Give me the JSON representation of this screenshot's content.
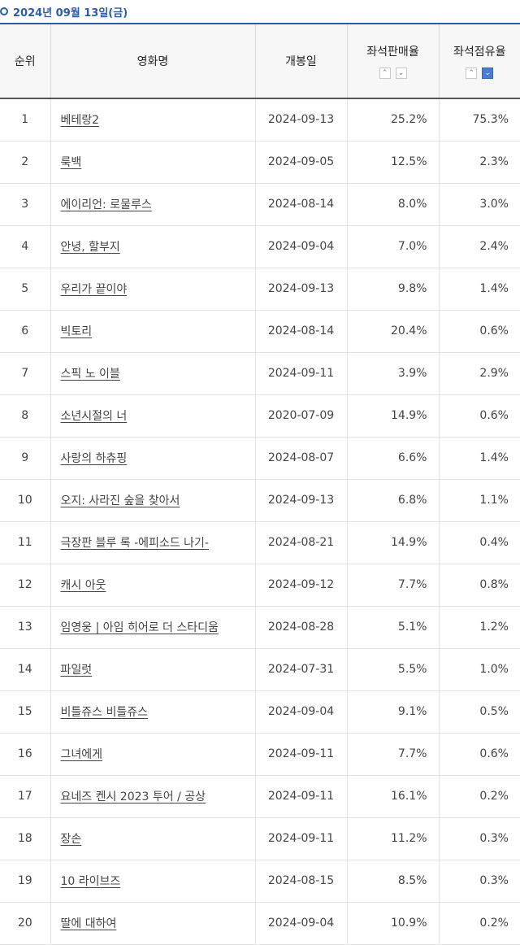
{
  "header": {
    "date_label": "2024년 09월 13일(금)"
  },
  "columns": {
    "rank": "순위",
    "title": "영화명",
    "release": "개봉일",
    "seat_sales": "좌석판매율",
    "seat_share": "좌석점유율"
  },
  "sort_icons": {
    "up": "chevron-up-icon",
    "down": "chevron-down-icon"
  },
  "rows": [
    {
      "rank": "1",
      "title": "베테랑2",
      "release": "2024-09-13",
      "sales": "25.2%",
      "share": "75.3%"
    },
    {
      "rank": "2",
      "title": "룩백",
      "release": "2024-09-05",
      "sales": "12.5%",
      "share": "2.3%"
    },
    {
      "rank": "3",
      "title": "에이리언: 로물루스",
      "release": "2024-08-14",
      "sales": "8.0%",
      "share": "3.0%"
    },
    {
      "rank": "4",
      "title": "안녕, 할부지",
      "release": "2024-09-04",
      "sales": "7.0%",
      "share": "2.4%"
    },
    {
      "rank": "5",
      "title": "우리가 끝이야",
      "release": "2024-09-13",
      "sales": "9.8%",
      "share": "1.4%"
    },
    {
      "rank": "6",
      "title": "빅토리",
      "release": "2024-08-14",
      "sales": "20.4%",
      "share": "0.6%"
    },
    {
      "rank": "7",
      "title": "스픽 노 이블",
      "release": "2024-09-11",
      "sales": "3.9%",
      "share": "2.9%"
    },
    {
      "rank": "8",
      "title": "소년시절의 너",
      "release": "2020-07-09",
      "sales": "14.9%",
      "share": "0.6%"
    },
    {
      "rank": "9",
      "title": "사랑의 하츄핑",
      "release": "2024-08-07",
      "sales": "6.6%",
      "share": "1.4%"
    },
    {
      "rank": "10",
      "title": "오지: 사라진 숲을 찾아서",
      "release": "2024-09-13",
      "sales": "6.8%",
      "share": "1.1%"
    },
    {
      "rank": "11",
      "title": "극장판 블루 록 -에피소드 나기-",
      "release": "2024-08-21",
      "sales": "14.9%",
      "share": "0.4%"
    },
    {
      "rank": "12",
      "title": "캐시 아웃",
      "release": "2024-09-12",
      "sales": "7.7%",
      "share": "0.8%"
    },
    {
      "rank": "13",
      "title": "임영웅 | 아임 히어로 더 스타디움",
      "release": "2024-08-28",
      "sales": "5.1%",
      "share": "1.2%"
    },
    {
      "rank": "14",
      "title": "파일럿",
      "release": "2024-07-31",
      "sales": "5.5%",
      "share": "1.0%"
    },
    {
      "rank": "15",
      "title": "비틀쥬스 비틀쥬스",
      "release": "2024-09-04",
      "sales": "9.1%",
      "share": "0.5%"
    },
    {
      "rank": "16",
      "title": "그녀에게",
      "release": "2024-09-11",
      "sales": "7.7%",
      "share": "0.6%"
    },
    {
      "rank": "17",
      "title": "요네즈 켄시 2023 투어 / 공상",
      "release": "2024-09-11",
      "sales": "16.1%",
      "share": "0.2%"
    },
    {
      "rank": "18",
      "title": "장손",
      "release": "2024-09-11",
      "sales": "11.2%",
      "share": "0.3%"
    },
    {
      "rank": "19",
      "title": "10 라이브즈",
      "release": "2024-08-15",
      "sales": "8.5%",
      "share": "0.3%"
    },
    {
      "rank": "20",
      "title": "딸에 대하여",
      "release": "2024-09-04",
      "sales": "10.9%",
      "share": "0.2%"
    }
  ]
}
